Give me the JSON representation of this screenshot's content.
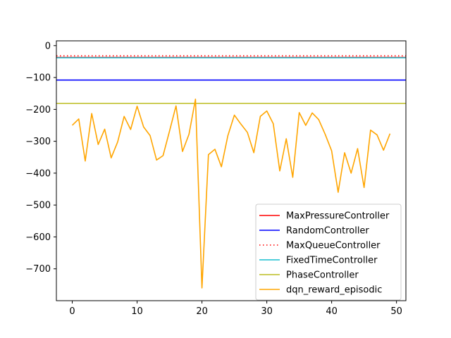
{
  "chart_data": {
    "type": "line",
    "title": "",
    "xlabel": "",
    "ylabel": "",
    "xlim": [
      -2.45,
      51.45
    ],
    "ylim": [
      -800,
      15
    ],
    "xticks": [
      0,
      10,
      20,
      30,
      40,
      50
    ],
    "yticks": [
      0,
      -100,
      -200,
      -300,
      -400,
      -500,
      -600,
      -700
    ],
    "x_tick_labels": [
      "0",
      "10",
      "20",
      "30",
      "40",
      "50"
    ],
    "y_tick_labels": [
      "0",
      "−100",
      "−200",
      "−300",
      "−400",
      "−500",
      "−600",
      "−700"
    ],
    "grid": false,
    "legend_position": "lower-right",
    "reference_lines": [
      {
        "name": "MaxPressureController",
        "y": -37,
        "color": "#ff0000",
        "style": "solid"
      },
      {
        "name": "RandomController",
        "y": -108,
        "color": "#0000ff",
        "style": "solid"
      },
      {
        "name": "MaxQueueController",
        "y": -32,
        "color": "#ff0000",
        "style": "dotted"
      },
      {
        "name": "FixedTimeController",
        "y": -38,
        "color": "#17becf",
        "style": "solid"
      },
      {
        "name": "PhaseController",
        "y": -181,
        "color": "#bcbd22",
        "style": "solid"
      }
    ],
    "series": [
      {
        "name": "dqn_reward_episodic",
        "color": "#ffa500",
        "x": [
          0,
          1,
          2,
          3,
          4,
          5,
          6,
          7,
          8,
          9,
          10,
          11,
          12,
          13,
          14,
          15,
          16,
          17,
          18,
          19,
          20,
          21,
          22,
          23,
          24,
          25,
          26,
          27,
          28,
          29,
          30,
          31,
          32,
          33,
          34,
          35,
          36,
          37,
          38,
          39,
          40,
          41,
          42,
          43,
          44,
          45,
          46,
          47,
          48,
          49
        ],
        "values": [
          -250,
          -230,
          -362,
          -213,
          -310,
          -262,
          -352,
          -302,
          -222,
          -263,
          -190,
          -255,
          -282,
          -359,
          -345,
          -268,
          -189,
          -332,
          -278,
          -168,
          -760,
          -342,
          -325,
          -380,
          -282,
          -218,
          -246,
          -272,
          -336,
          -222,
          -205,
          -245,
          -393,
          -292,
          -413,
          -210,
          -250,
          -211,
          -232,
          -278,
          -330,
          -460,
          -336,
          -400,
          -323,
          -445,
          -265,
          -280,
          -328,
          -276
        ]
      }
    ]
  }
}
